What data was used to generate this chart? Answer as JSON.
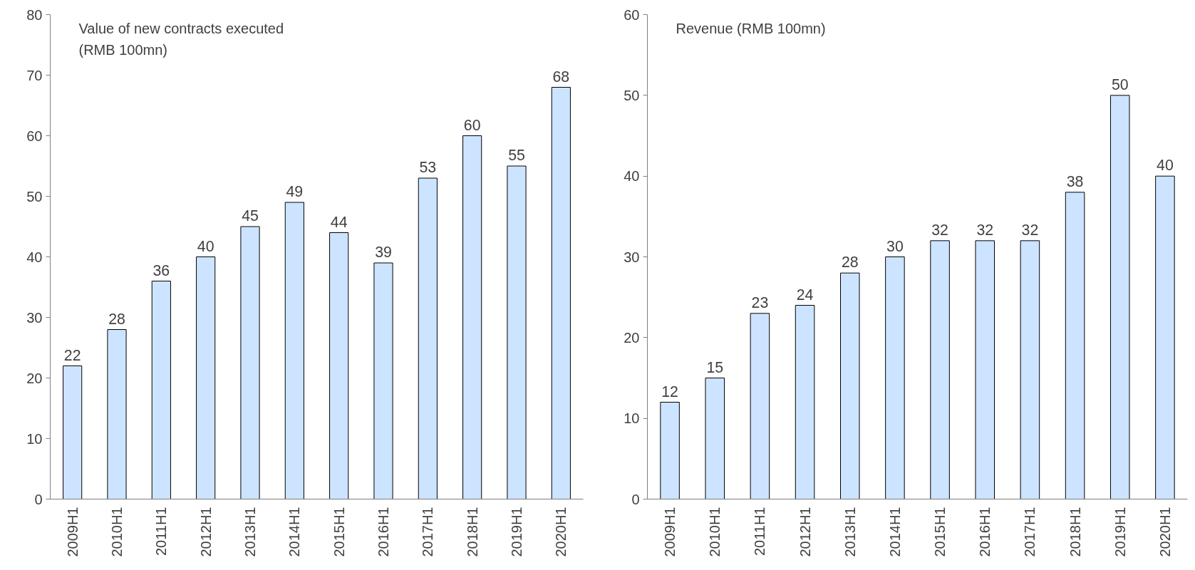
{
  "chart_data": [
    {
      "type": "bar",
      "title": "Value of new contracts executed\n (RMB 100mn)",
      "categories": [
        "2009H1",
        "2010H1",
        "2011H1",
        "2012H1",
        "2013H1",
        "2014H1",
        "2015H1",
        "2016H1",
        "2017H1",
        "2018H1",
        "2019H1",
        "2020H1"
      ],
      "values": [
        22,
        28,
        36,
        40,
        45,
        49,
        44,
        39,
        53,
        60,
        55,
        68
      ],
      "color": "#cce4ff",
      "ylim": [
        0,
        80
      ],
      "yticks": [
        0,
        10,
        20,
        30,
        40,
        50,
        60,
        70,
        80
      ],
      "data_labels": true
    },
    {
      "type": "bar",
      "title": "Revenue (RMB 100mn)",
      "categories": [
        "2009H1",
        "2010H1",
        "2011H1",
        "2012H1",
        "2013H1",
        "2014H1",
        "2015H1",
        "2016H1",
        "2017H1",
        "2018H1",
        "2019H1",
        "2020H1"
      ],
      "values": [
        12,
        15,
        23,
        24,
        28,
        30,
        32,
        32,
        32,
        38,
        50,
        40
      ],
      "color": "#cce4ff",
      "ylim": [
        0,
        60
      ],
      "yticks": [
        0,
        10,
        20,
        30,
        40,
        50,
        60
      ],
      "data_labels": true
    }
  ]
}
